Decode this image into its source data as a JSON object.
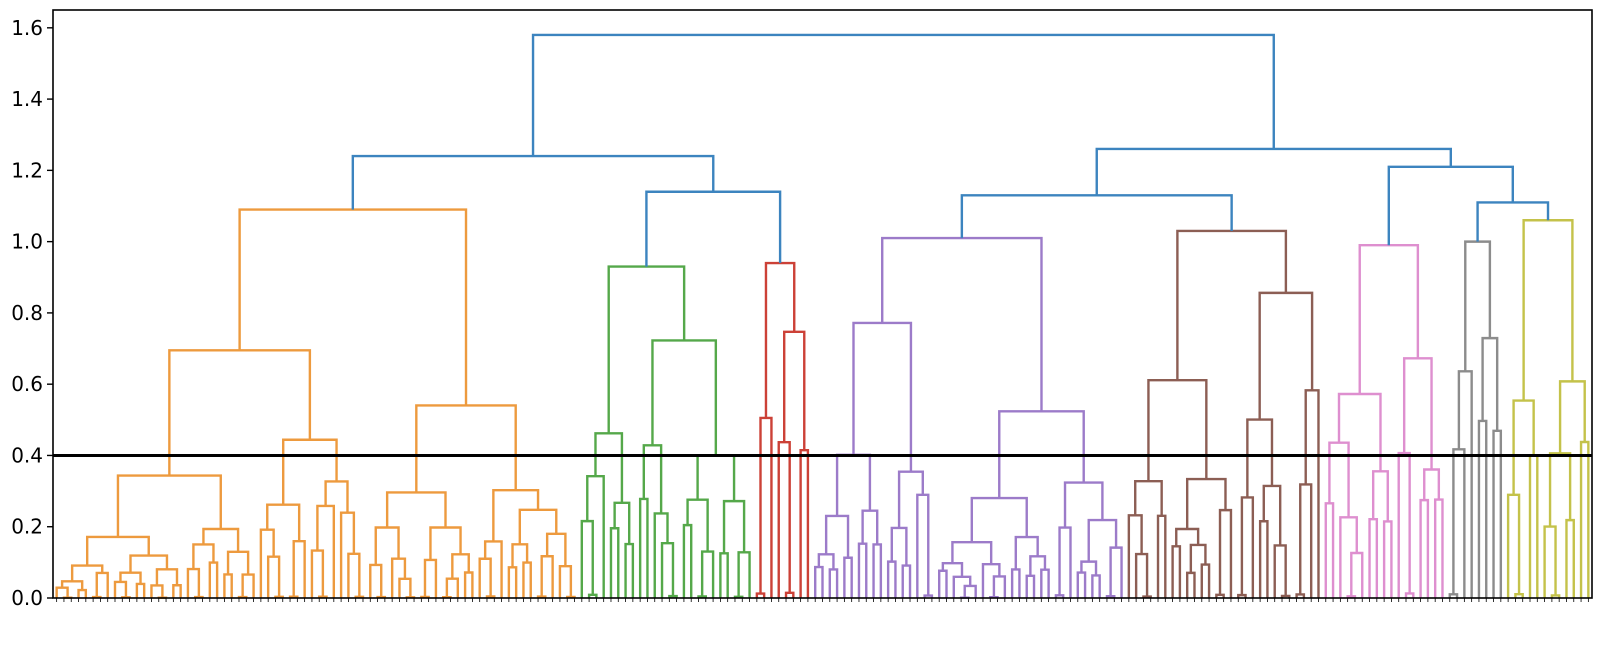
{
  "chart_data": {
    "type": "dendrogram",
    "title": "",
    "xlabel": "",
    "ylabel": "",
    "ylim": [
      0,
      1.65
    ],
    "yticks": [
      0.0,
      0.2,
      0.4,
      0.6,
      0.8,
      1.0,
      1.2,
      1.4,
      1.6
    ],
    "ytick_labels": [
      "0.0",
      "0.2",
      "0.4",
      "0.6",
      "0.8",
      "1.0",
      "1.2",
      "1.4",
      "1.6"
    ],
    "cut_height": 0.4,
    "root_height": 1.58,
    "cluster_colors": {
      "orange": "#ED9A3E",
      "green": "#55A84A",
      "red": "#CC4137",
      "purple": "#9C7BC9",
      "brown": "#8C5E54",
      "pink": "#DE8FCF",
      "gray": "#8C8C8C",
      "olive": "#C4C24A",
      "link": "#3C84BF",
      "cut_line": "#000000"
    },
    "clusters": [
      {
        "color": "orange",
        "leaf_count": 72,
        "merge_height": 1.09
      },
      {
        "color": "green",
        "leaf_count": 24,
        "merge_height": 0.93
      },
      {
        "color": "red",
        "leaf_count": 8,
        "merge_height": 0.94
      },
      {
        "color": "purple",
        "leaf_count": 43,
        "merge_height": 1.01
      },
      {
        "color": "brown",
        "leaf_count": 27,
        "merge_height": 1.03
      },
      {
        "color": "pink",
        "leaf_count": 17,
        "merge_height": 0.99
      },
      {
        "color": "gray",
        "leaf_count": 8,
        "merge_height": 1.0
      },
      {
        "color": "olive",
        "leaf_count": 12,
        "merge_height": 1.06
      }
    ],
    "upper_links": {
      "root": 1.58,
      "left_group": 1.24,
      "green_red": 1.14,
      "right_group": 1.26,
      "purple_brown": 1.13,
      "pink_gray_olive": 1.21,
      "gray_olive": 1.11
    }
  }
}
